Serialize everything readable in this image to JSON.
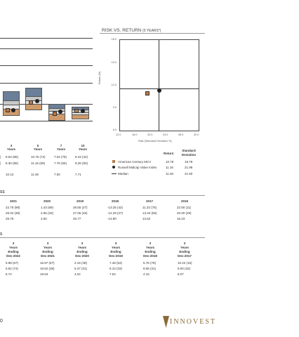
{
  "risk_title": "RISK VS. RETURN",
  "risk_subtitle": "(5 YEARS*)",
  "scatter": {
    "ylabel": "Return (%)",
    "xlabel": "Risk (Standard Deviation %)",
    "yticks": [
      "18.0",
      "15.0",
      "12.0",
      "9.0",
      "6.0"
    ],
    "xticks": [
      "12.0",
      "16.0",
      "20.0",
      "24.0",
      "28.0",
      "32.0"
    ]
  },
  "chart_data": {
    "type": "scatter",
    "xlabel": "Risk (Standard Deviation %)",
    "ylabel": "Return (%)",
    "xlim": [
      12.0,
      32.0
    ],
    "ylim": [
      6.0,
      18.0
    ],
    "points": [
      {
        "name": "American Century MCV",
        "x": 18.79,
        "y": 10.76,
        "marker": "square",
        "color": "#b87a48"
      },
      {
        "name": "Russell Midcap Value Index",
        "x": 21.98,
        "y": 11.16,
        "marker": "circle",
        "color": "#222222"
      }
    ],
    "median": {
      "x": 21.6,
      "y": 11.48
    }
  },
  "legend": {
    "header_return": "Return",
    "header_sd": "Standard Deviation",
    "rows": [
      {
        "name": "American Century MCV",
        "ret": "10.76",
        "sd": "18.79"
      },
      {
        "name": "Russell Midcap Value Index",
        "ret": "11.16",
        "sd": "21.98"
      },
      {
        "name": "Median",
        "ret": "11.48",
        "sd": "21.60"
      }
    ]
  },
  "periods": [
    {
      "top": "3",
      "bot": "Years"
    },
    {
      "top": "5",
      "bot": "Years"
    },
    {
      "top": "7",
      "bot": "Years"
    },
    {
      "top": "10",
      "bot": "Years"
    }
  ],
  "period_rows": [
    {
      "lead": ")",
      "vals": [
        "9.53  (85)",
        "10.76  (72)",
        "7.04  (78)",
        "8.43  (42)"
      ]
    },
    {
      "lead": ")",
      "vals": [
        "8.30  (85)",
        "11.16  (59)",
        "7.76  (55)",
        "8.26  (50)"
      ]
    },
    {
      "lead": "",
      "vals": [
        "10.13",
        "11.48",
        "7.92",
        "7.71"
      ]
    }
  ],
  "cal_section": "SS",
  "years": [
    "2021",
    "2020",
    "2019",
    "2018",
    "2017",
    "2016"
  ],
  "cal_rows": [
    [
      "22.75  (98)",
      "1.43  (69)",
      "28.55  (27)",
      "-13.25  (42)",
      "11.32  (76)",
      "22.50  (11)"
    ],
    [
      "28.34  (38)",
      "4.96  (33)",
      "27.06  (46)",
      "-12.29  (27)",
      "13.34  (55)",
      "20.00  (29)"
    ],
    [
      "28.79",
      "2.50",
      "26.77",
      "-13.80",
      "13.62",
      "16.23"
    ]
  ],
  "roll_section": "S",
  "roll_headers": [
    {
      "n": "3",
      "a": "Years",
      "b": "Ending",
      "c": "Dec-2022"
    },
    {
      "n": "3",
      "a": "Years",
      "b": "Ending",
      "c": "Dec-2021"
    },
    {
      "n": "3",
      "a": "Years",
      "b": "Ending",
      "c": "Dec-2020"
    },
    {
      "n": "3",
      "a": "Years",
      "b": "Ending",
      "c": "Dec-2019"
    },
    {
      "n": "3",
      "a": "Years",
      "b": "Ending",
      "c": "Dec-2018"
    },
    {
      "n": "3",
      "a": "Years",
      "b": "Ending",
      "c": "Dec-2017"
    }
  ],
  "roll_rows": [
    [
      "6.98  (67)",
      "16.97  (67)",
      "4.19  (48)",
      "7.48  (53)",
      "5.76  (78)",
      "10.22  (16)"
    ],
    [
      "5.82  (74)",
      "19.62  (38)",
      "5.37  (31)",
      "8.10  (33)",
      "8.06  (31)",
      "9.00  (33)"
    ],
    [
      "6.72",
      "18.63",
      "4.02",
      "7.54",
      "4.16",
      "8.07"
    ]
  ],
  "page_num": "0",
  "brand": "INNOVEST",
  "colors": {
    "fund": "#b87a48",
    "index": "#222222",
    "box_top": "#6b7f99",
    "box_mid": "#c8c8c8",
    "box_low": "#cf9b6c",
    "brand": "#8a6a3a"
  }
}
